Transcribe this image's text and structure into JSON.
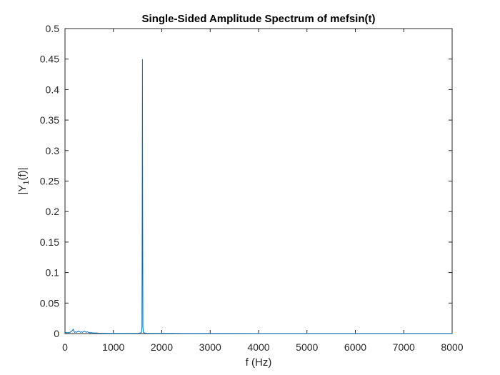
{
  "chart_data": {
    "type": "line",
    "title": "Single-Sided Amplitude Spectrum of mefsin(t)",
    "xlabel": "f (Hz)",
    "ylabel": {
      "prefix": "|Y",
      "subscript": "1",
      "suffix": "(f)|"
    },
    "xlim": [
      0,
      8000
    ],
    "ylim": [
      0,
      0.5
    ],
    "xticks": [
      0,
      1000,
      2000,
      3000,
      4000,
      5000,
      6000,
      7000,
      8000
    ],
    "xtick_labels": [
      "0",
      "1000",
      "2000",
      "3000",
      "4000",
      "5000",
      "6000",
      "7000",
      "8000"
    ],
    "yticks": [
      0,
      0.05,
      0.1,
      0.15,
      0.2,
      0.25,
      0.3,
      0.35,
      0.4,
      0.45,
      0.5
    ],
    "ytick_labels": [
      "0",
      "0.05",
      "0.1",
      "0.15",
      "0.2",
      "0.25",
      "0.3",
      "0.35",
      "0.4",
      "0.45",
      "0.5"
    ],
    "grid": false,
    "line_color": "#0072BD",
    "series": [
      {
        "x": [
          0,
          20,
          40,
          60,
          80,
          100,
          120,
          140,
          160,
          170,
          180,
          190,
          200,
          220,
          240,
          260,
          280,
          300,
          320,
          340,
          360,
          380,
          400,
          420,
          440,
          460,
          480,
          500,
          520,
          540,
          560,
          600,
          650,
          700,
          800,
          900,
          1000,
          1100,
          1200,
          1300,
          1400,
          1500,
          1560,
          1580,
          1590,
          1595,
          1600,
          1605,
          1610,
          1620,
          1640,
          1700,
          1800,
          2000,
          2200,
          2500,
          3000,
          3500,
          4000,
          4500,
          5000,
          5500,
          6000,
          6500,
          7000,
          7500,
          8000
        ],
        "y": [
          0.001,
          0.002,
          0.001,
          0.002,
          0.001,
          0.002,
          0.003,
          0.004,
          0.006,
          0.007,
          0.005,
          0.003,
          0.002,
          0.003,
          0.002,
          0.003,
          0.004,
          0.003,
          0.002,
          0.003,
          0.002,
          0.003,
          0.004,
          0.003,
          0.002,
          0.003,
          0.002,
          0.002,
          0.001,
          0.002,
          0.001,
          0.001,
          0.001,
          0.0008,
          0.0006,
          0.0005,
          0.0005,
          0.0004,
          0.0004,
          0.0004,
          0.0005,
          0.0006,
          0.001,
          0.002,
          0.01,
          0.2,
          0.45,
          0.2,
          0.01,
          0.002,
          0.001,
          0.0006,
          0.0005,
          0.0004,
          0.0004,
          0.0003,
          0.0003,
          0.0003,
          0.0002,
          0.0002,
          0.0002,
          0.0002,
          0.0002,
          0.0002,
          0.0002,
          0.0002,
          0.0002
        ]
      }
    ]
  }
}
